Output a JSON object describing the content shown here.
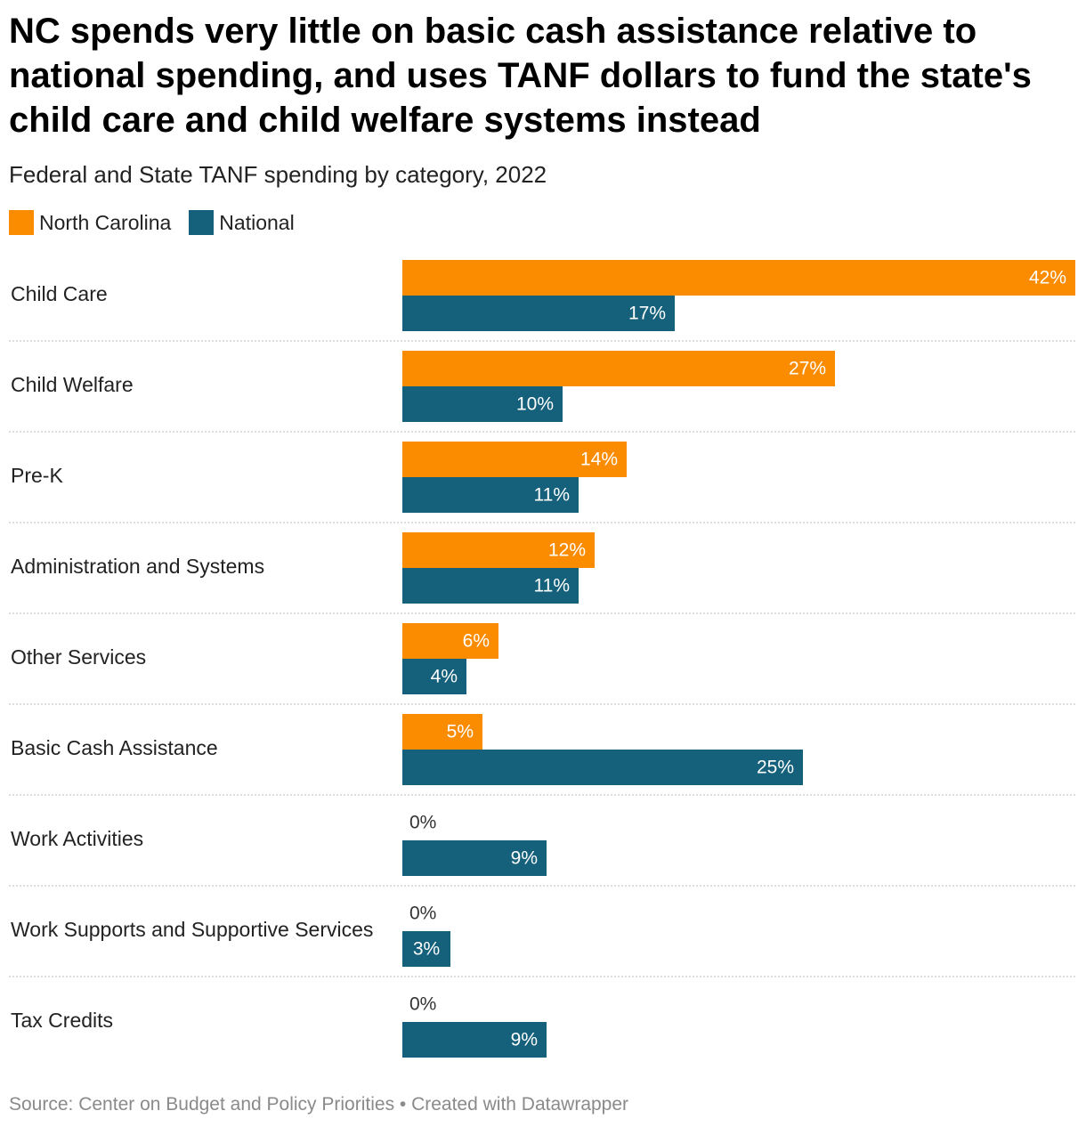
{
  "chart_data": {
    "type": "bar",
    "orientation": "horizontal-grouped",
    "title": "NC spends very little on basic cash assistance relative to national spending, and uses TANF dollars to fund the state's child care and child welfare systems instead",
    "subtitle": "Federal and State TANF spending by category, 2022",
    "categories": [
      "Child Care",
      "Child Welfare",
      "Pre-K",
      "Administration and Systems",
      "Other Services",
      "Basic Cash Assistance",
      "Work Activities",
      "Work Supports and Supportive Services",
      "Tax Credits"
    ],
    "series": [
      {
        "name": "North Carolina",
        "color": "#fb8c00",
        "values": [
          42,
          27,
          14,
          12,
          6,
          5,
          0,
          0,
          0
        ],
        "labels": [
          "42%",
          "27%",
          "14%",
          "12%",
          "6%",
          "5%",
          "0%",
          "0%",
          "0%"
        ]
      },
      {
        "name": "National",
        "color": "#15607a",
        "values": [
          17,
          10,
          11,
          11,
          4,
          25,
          9,
          3,
          9
        ],
        "labels": [
          "17%",
          "10%",
          "11%",
          "11%",
          "4%",
          "25%",
          "9%",
          "3%",
          "9%"
        ]
      }
    ],
    "value_unit": "%",
    "xlim": [
      0,
      42
    ],
    "legend_position": "top-left",
    "source": "Source: Center on Budget and Policy Priorities • Created with Datawrapper"
  }
}
